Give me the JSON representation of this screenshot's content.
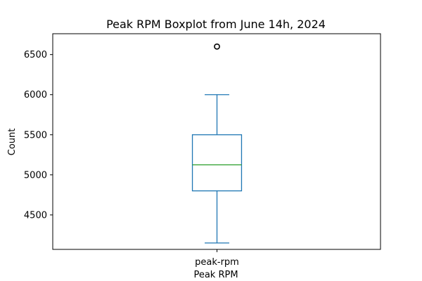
{
  "chart_data": {
    "type": "box",
    "title": "Peak RPM Boxplot from June 14h, 2024",
    "xlabel": "Peak RPM",
    "ylabel": "Count",
    "categories": [
      "peak-rpm"
    ],
    "boxes": [
      {
        "name": "peak-rpm",
        "whisker_low": 4150,
        "q1": 4800,
        "median": 5125,
        "q3": 5500,
        "whisker_high": 6000,
        "outliers": [
          6600
        ]
      }
    ],
    "ylim": [
      4070,
      6760
    ],
    "yticks": [
      4500,
      5000,
      5500,
      6000,
      6500
    ],
    "grid": false,
    "box_color": "#1f77b4",
    "median_color": "#2ca02c",
    "outlier_color": "#000000"
  }
}
